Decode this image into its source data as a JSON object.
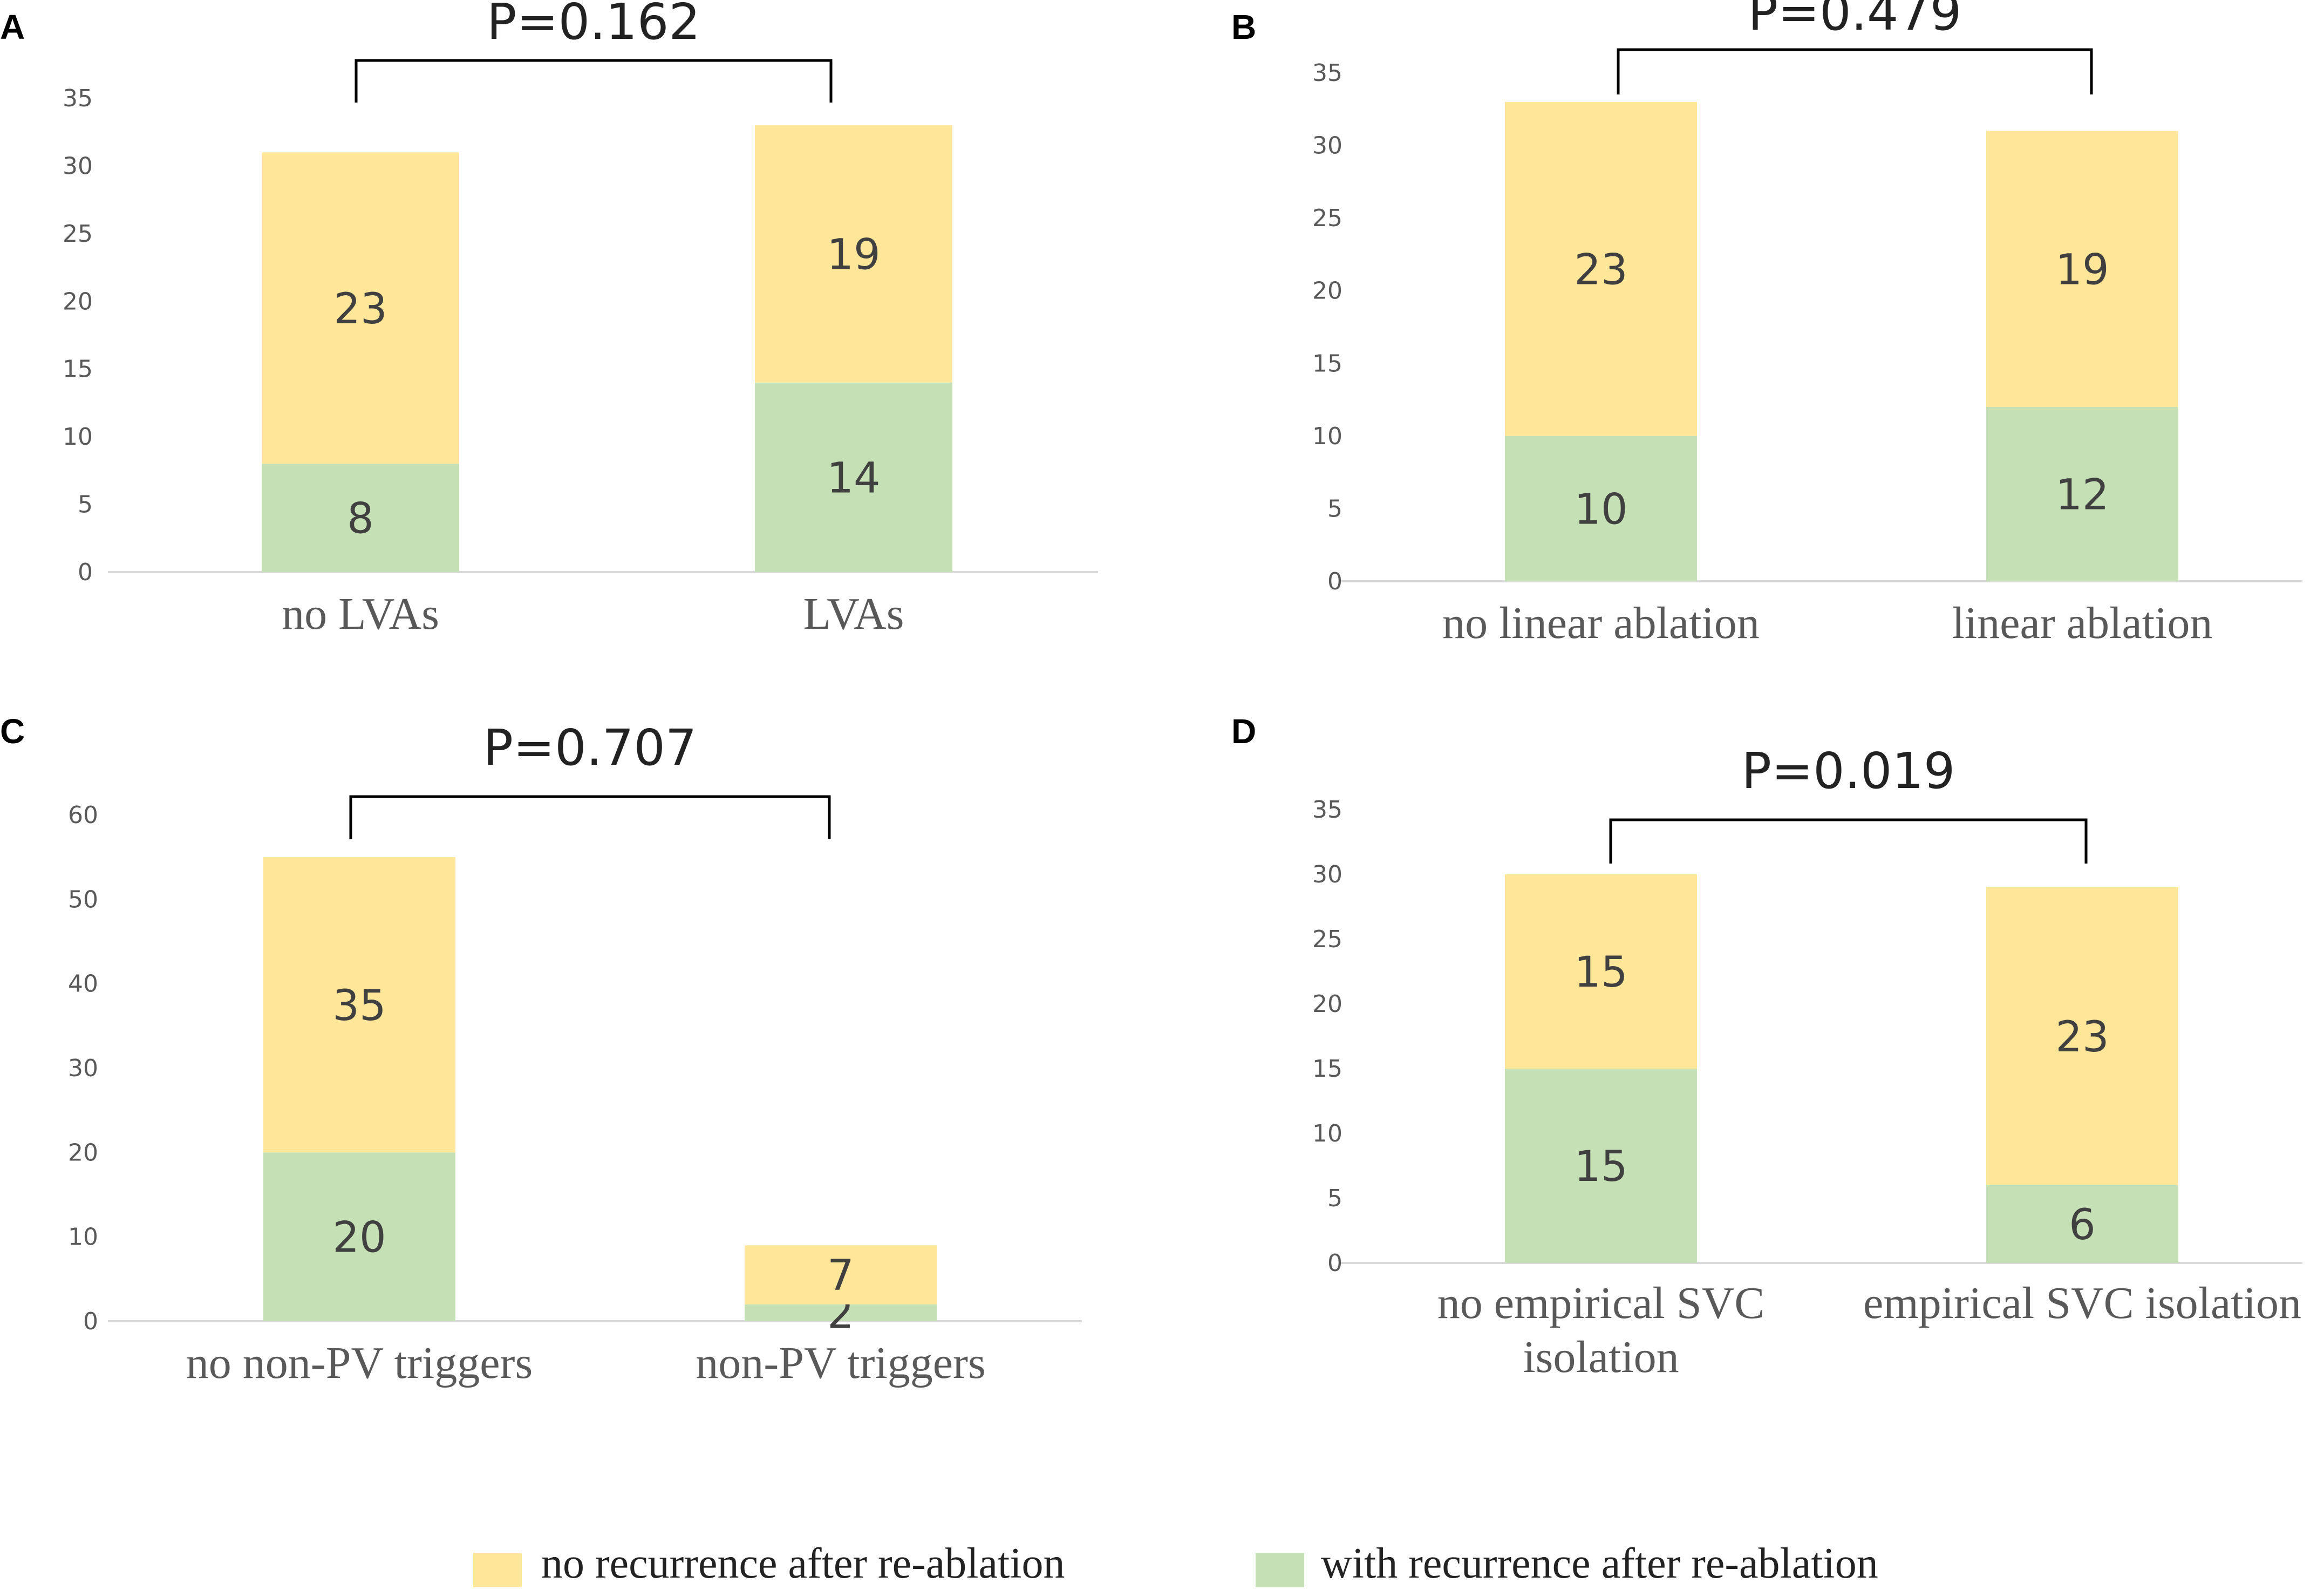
{
  "colors": {
    "no_recurrence": "#ffe699",
    "with_recurrence": "#c5e0b4"
  },
  "legend": [
    {
      "label": "no recurrence after re-ablation",
      "series": "no_recurrence"
    },
    {
      "label": "with recurrence after re-ablation",
      "series": "with_recurrence"
    }
  ],
  "chart_data": [
    {
      "panel": "A",
      "type": "bar",
      "stacked": true,
      "p_label": "P=0.162",
      "categories": [
        "no LVAs",
        "LVAs"
      ],
      "series": [
        {
          "name": "with recurrence after re-ablation",
          "key": "with_recurrence",
          "values": [
            8,
            14
          ]
        },
        {
          "name": "no recurrence after re-ablation",
          "key": "no_recurrence",
          "values": [
            23,
            19
          ]
        }
      ],
      "ylim": [
        0,
        35
      ],
      "yticks": [
        0,
        5,
        10,
        15,
        20,
        25,
        30,
        35
      ],
      "grid": false
    },
    {
      "panel": "B",
      "type": "bar",
      "stacked": true,
      "p_label": "P=0.479",
      "categories": [
        "no linear ablation",
        "linear ablation"
      ],
      "series": [
        {
          "name": "with recurrence after re-ablation",
          "key": "with_recurrence",
          "values": [
            10,
            12
          ]
        },
        {
          "name": "no recurrence after re-ablation",
          "key": "no_recurrence",
          "values": [
            23,
            19
          ]
        }
      ],
      "ylim": [
        0,
        35
      ],
      "yticks": [
        0,
        5,
        10,
        15,
        20,
        25,
        30,
        35
      ],
      "grid": false
    },
    {
      "panel": "C",
      "type": "bar",
      "stacked": true,
      "p_label": "P=0.707",
      "categories": [
        "no non-PV triggers",
        "non-PV triggers"
      ],
      "series": [
        {
          "name": "with recurrence after re-ablation",
          "key": "with_recurrence",
          "values": [
            20,
            2
          ]
        },
        {
          "name": "no recurrence after re-ablation",
          "key": "no_recurrence",
          "values": [
            35,
            7
          ]
        }
      ],
      "ylim": [
        0,
        60
      ],
      "yticks": [
        0,
        10,
        20,
        30,
        40,
        50,
        60
      ],
      "grid": false
    },
    {
      "panel": "D",
      "type": "bar",
      "stacked": true,
      "p_label": "P=0.019",
      "categories": [
        [
          "no empirical SVC",
          "isolation"
        ],
        [
          "empirical SVC isolation"
        ]
      ],
      "series": [
        {
          "name": "with recurrence after re-ablation",
          "key": "with_recurrence",
          "values": [
            15,
            6
          ]
        },
        {
          "name": "no recurrence after re-ablation",
          "key": "no_recurrence",
          "values": [
            15,
            23
          ]
        }
      ],
      "ylim": [
        0,
        35
      ],
      "yticks": [
        0,
        5,
        10,
        15,
        20,
        25,
        30,
        35
      ],
      "grid": false
    }
  ]
}
